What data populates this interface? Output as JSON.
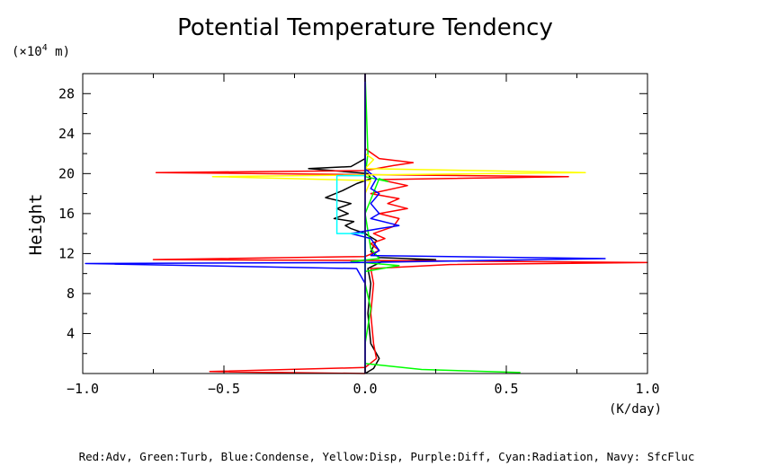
{
  "chart_data": {
    "type": "line",
    "title": "Potential Temperature Tendency",
    "ylabel": "Height",
    "yunit_prefix": "(×10",
    "yunit_exp": "4",
    "yunit_suffix": " m)",
    "xunit": "(K/day)",
    "xlim": [
      -1.0,
      1.0
    ],
    "ylim": [
      0,
      30
    ],
    "xticks": [
      -1.0,
      -0.5,
      0.0,
      0.5,
      1.0
    ],
    "xtick_labels": [
      "−1.0",
      "−0.5",
      "0.0",
      "0.5",
      "1.0"
    ],
    "yticks": [
      4,
      8,
      12,
      16,
      20,
      24,
      28
    ],
    "ytick_labels": [
      "4",
      "8",
      "12",
      "16",
      "20",
      "24",
      "28"
    ],
    "legend_text": "Red:Adv, Green:Turb, Blue:Condense, Yellow:Disp, Purple:Diff, Cyan:Radiation, Navy: SfcFluc",
    "series": [
      {
        "color": "#000000",
        "points": [
          [
            0.0,
            0
          ],
          [
            0.03,
            0.5
          ],
          [
            0.05,
            1.5
          ],
          [
            0.02,
            3
          ],
          [
            0.01,
            6
          ],
          [
            0.02,
            9
          ],
          [
            0.01,
            10.5
          ],
          [
            0.06,
            11.2
          ],
          [
            0.25,
            11.4
          ],
          [
            0.05,
            11.6
          ],
          [
            0.02,
            12.2
          ],
          [
            0.04,
            13.3
          ],
          [
            0.0,
            14.0
          ],
          [
            -0.05,
            14.5
          ],
          [
            -0.07,
            14.8
          ],
          [
            -0.04,
            15.2
          ],
          [
            -0.11,
            15.5
          ],
          [
            -0.06,
            16.0
          ],
          [
            -0.1,
            16.5
          ],
          [
            -0.05,
            17.0
          ],
          [
            -0.14,
            17.6
          ],
          [
            -0.08,
            18.3
          ],
          [
            -0.03,
            19.0
          ],
          [
            0.02,
            19.5
          ],
          [
            0.01,
            20.0
          ],
          [
            -0.2,
            20.5
          ],
          [
            -0.05,
            20.7
          ],
          [
            0.0,
            21.5
          ],
          [
            0.0,
            30
          ]
        ]
      },
      {
        "color": "#ff0000",
        "points": [
          [
            0.0,
            0
          ],
          [
            -0.55,
            0.2
          ],
          [
            0.0,
            0.6
          ],
          [
            0.04,
            1.5
          ],
          [
            0.03,
            3
          ],
          [
            0.02,
            6
          ],
          [
            0.03,
            9
          ],
          [
            0.02,
            10.5
          ],
          [
            0.3,
            10.9
          ],
          [
            1.0,
            11.1
          ],
          [
            0.1,
            11.3
          ],
          [
            -0.75,
            11.4
          ],
          [
            0.0,
            11.7
          ],
          [
            0.05,
            12.3
          ],
          [
            0.02,
            13.0
          ],
          [
            0.07,
            13.5
          ],
          [
            0.03,
            14.0
          ],
          [
            0.1,
            14.7
          ],
          [
            0.12,
            15.5
          ],
          [
            0.05,
            16.0
          ],
          [
            0.15,
            16.5
          ],
          [
            0.08,
            17.0
          ],
          [
            0.12,
            17.5
          ],
          [
            0.02,
            18.0
          ],
          [
            0.15,
            18.8
          ],
          [
            0.05,
            19.4
          ],
          [
            0.72,
            19.7
          ],
          [
            -0.74,
            20.1
          ],
          [
            0.0,
            20.3
          ],
          [
            0.1,
            20.8
          ],
          [
            0.17,
            21.1
          ],
          [
            0.05,
            21.5
          ],
          [
            0.0,
            22.5
          ],
          [
            0.0,
            30
          ]
        ]
      },
      {
        "color": "#00ff00",
        "points": [
          [
            0.55,
            0.1
          ],
          [
            0.2,
            0.4
          ],
          [
            0.0,
            1.0
          ],
          [
            0.0,
            3.0
          ],
          [
            0.02,
            6.5
          ],
          [
            0.0,
            9.0
          ],
          [
            0.0,
            10.2
          ],
          [
            0.12,
            10.8
          ],
          [
            -0.05,
            11.2
          ],
          [
            0.05,
            11.5
          ],
          [
            0.02,
            12.5
          ],
          [
            0.0,
            16
          ],
          [
            0.05,
            19.5
          ],
          [
            0.08,
            19.2
          ],
          [
            0.0,
            19.7
          ],
          [
            0.01,
            22
          ],
          [
            0.0,
            30
          ]
        ]
      },
      {
        "color": "#0000ff",
        "points": [
          [
            0.0,
            0
          ],
          [
            0.0,
            3.0
          ],
          [
            0.0,
            9.0
          ],
          [
            -0.03,
            10.5
          ],
          [
            -0.99,
            11.0
          ],
          [
            -0.02,
            11.1
          ],
          [
            0.85,
            11.5
          ],
          [
            0.02,
            11.8
          ],
          [
            0.05,
            12.3
          ],
          [
            0.02,
            13.5
          ],
          [
            -0.05,
            14.0
          ],
          [
            0.05,
            14.5
          ],
          [
            0.12,
            14.8
          ],
          [
            0.02,
            15.5
          ],
          [
            0.05,
            16.0
          ],
          [
            0.02,
            17.0
          ],
          [
            0.05,
            18.0
          ],
          [
            0.02,
            18.5
          ],
          [
            0.04,
            19.5
          ],
          [
            0.0,
            20.5
          ],
          [
            0.0,
            30
          ]
        ]
      },
      {
        "color": "#ffff00",
        "points": [
          [
            0.0,
            0
          ],
          [
            0.0,
            18.0
          ],
          [
            0.02,
            19.3
          ],
          [
            -0.54,
            19.7
          ],
          [
            0.78,
            20.1
          ],
          [
            0.0,
            20.5
          ],
          [
            0.03,
            21.4
          ],
          [
            0.0,
            22.0
          ],
          [
            0.0,
            30
          ]
        ]
      },
      {
        "color": "#800080",
        "points": [
          [
            0.0,
            0
          ],
          [
            0.0,
            30
          ]
        ]
      },
      {
        "color": "#00ffff",
        "points": [
          [
            0.0,
            10.0
          ],
          [
            0.0,
            14.0
          ],
          [
            -0.1,
            14.0
          ],
          [
            -0.1,
            19.8
          ],
          [
            0.0,
            19.8
          ],
          [
            0.0,
            21.0
          ]
        ]
      },
      {
        "color": "#000080",
        "points": [
          [
            0.0,
            0
          ],
          [
            0.0,
            30
          ]
        ]
      }
    ]
  }
}
